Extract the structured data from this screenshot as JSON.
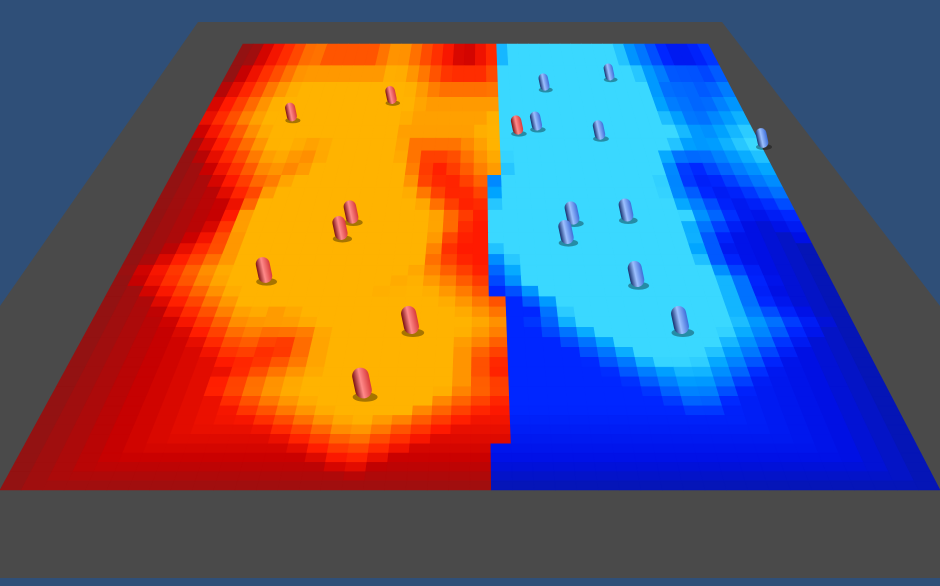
{
  "scene": {
    "background_color": "#2f4f78",
    "floor_color": "#4a4a4a",
    "cell_edge_color": "#000000"
  },
  "teams": {
    "red": {
      "unit_colors": {
        "light": "#ff8a8a",
        "mid": "#d83a3a",
        "dark": "#7a1010"
      },
      "heat_stops": [
        "#4a4a4a",
        "#7a1b1b",
        "#c80000",
        "#ff1a00",
        "#ff4c00",
        "#ff8c00",
        "#ffb300"
      ]
    },
    "blue": {
      "unit_colors": {
        "light": "#9cc0ff",
        "mid": "#3e6ed8",
        "dark": "#14306e"
      },
      "heat_stops": [
        "#4a4a4a",
        "#0a1a8a",
        "#0010e6",
        "#0026ff",
        "#0070ff",
        "#00a4ff",
        "#3ad8ff"
      ]
    }
  }
}
